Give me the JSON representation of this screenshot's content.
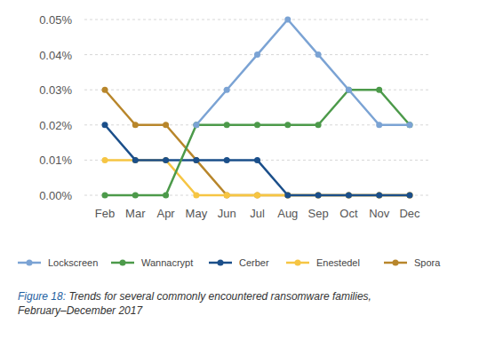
{
  "chart_data": {
    "type": "line",
    "caption": {
      "label": "Figure 18:",
      "text": "Trends for several commonly encountered ransomware families, February–December 2017"
    },
    "categories": [
      "Feb",
      "Mar",
      "Apr",
      "May",
      "Jun",
      "Jul",
      "Aug",
      "Sep",
      "Oct",
      "Nov",
      "Dec"
    ],
    "series": [
      {
        "name": "Lockscreen",
        "color": "#7ba3d4",
        "values": [
          null,
          null,
          null,
          0.02,
          0.03,
          0.04,
          0.05,
          0.04,
          0.03,
          0.02,
          0.02
        ]
      },
      {
        "name": "Wannacrypt",
        "color": "#4c9a4a",
        "values": [
          0,
          0,
          0,
          0.02,
          0.02,
          0.02,
          0.02,
          0.02,
          0.03,
          0.03,
          0.02
        ]
      },
      {
        "name": "Cerber",
        "color": "#1b4f8a",
        "values": [
          0.02,
          0.01,
          0.01,
          0.01,
          0.01,
          0.01,
          0,
          0,
          0,
          0,
          0
        ]
      },
      {
        "name": "Enestedel",
        "color": "#f6c543",
        "values": [
          0.01,
          0.01,
          0.01,
          0,
          0,
          0,
          0,
          0,
          0,
          0,
          0
        ]
      },
      {
        "name": "Spora",
        "color": "#b8862b",
        "values": [
          0.03,
          0.02,
          0.02,
          0.01,
          0,
          0,
          0,
          0,
          0,
          0,
          0
        ]
      }
    ],
    "ylim": [
      0,
      0.05
    ],
    "yticks": [
      {
        "value": 0,
        "label": "0.00%"
      },
      {
        "value": 0.01,
        "label": "0.01%"
      },
      {
        "value": 0.02,
        "label": "0.02%"
      },
      {
        "value": 0.03,
        "label": "0.03%"
      },
      {
        "value": 0.04,
        "label": "0.04%"
      },
      {
        "value": 0.05,
        "label": "0.05%"
      }
    ],
    "grid": true,
    "legend": "bottom",
    "marker": "circle"
  }
}
